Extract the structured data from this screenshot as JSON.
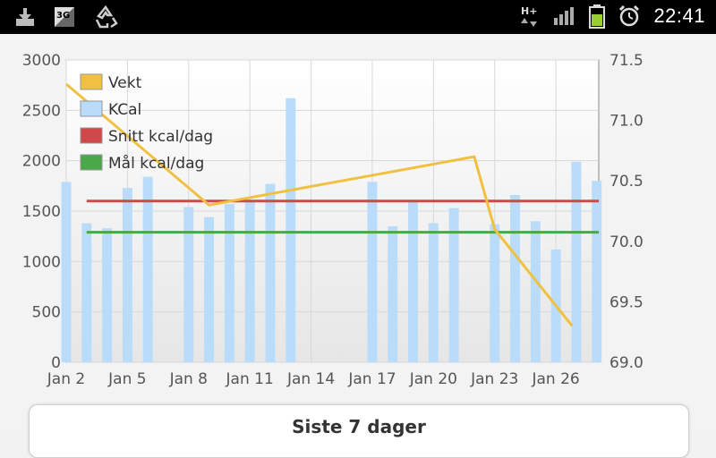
{
  "status_bar": {
    "time": "22:41",
    "network_type": "3G",
    "data_type": "H+",
    "icons": [
      "download-icon",
      "sim-3g-icon",
      "recycle-icon",
      "hplus-data-icon",
      "signal-icon",
      "battery-icon",
      "alarm-icon"
    ],
    "battery_color": "#9acd32"
  },
  "summary": {
    "title": "Siste 7 dager"
  },
  "colors": {
    "vekt": "#f0c040",
    "kcal": "#b8dcfa",
    "snitt": "#d04848",
    "maal": "#4aa84a",
    "grid": "#d8d8d8",
    "axis": "#555555"
  },
  "chart_data": {
    "type": "bar",
    "title": "",
    "x_tick_labels": [
      "Jan 2",
      "Jan 5",
      "Jan 8",
      "Jan 11",
      "Jan 14",
      "Jan 17",
      "Jan 20",
      "Jan 23",
      "Jan 26"
    ],
    "x_tick_days": [
      2,
      5,
      8,
      11,
      14,
      17,
      20,
      23,
      26
    ],
    "xlim": [
      2,
      28.1
    ],
    "ylim_left": [
      0,
      3000
    ],
    "y_ticks_left": [
      "0",
      "500",
      "1000",
      "1500",
      "2000",
      "2500",
      "3000"
    ],
    "ylim_right": [
      69.0,
      71.5
    ],
    "y_ticks_right": [
      "69.0",
      "69.5",
      "70.0",
      "70.5",
      "71.0",
      "71.5"
    ],
    "grid": true,
    "legend_position": "top-left",
    "series": [
      {
        "name": "Vekt",
        "kind": "line",
        "axis": "right",
        "points": [
          [
            2,
            71.3
          ],
          [
            9,
            70.3
          ],
          [
            22,
            70.7
          ],
          [
            23,
            70.1
          ],
          [
            26.8,
            69.3
          ]
        ]
      },
      {
        "name": "KCal",
        "kind": "bar",
        "axis": "left",
        "points": [
          [
            2,
            1790
          ],
          [
            3,
            1380
          ],
          [
            4,
            1330
          ],
          [
            5,
            1730
          ],
          [
            6,
            1840
          ],
          [
            8,
            1540
          ],
          [
            9,
            1440
          ],
          [
            10,
            1570
          ],
          [
            11,
            1600
          ],
          [
            12,
            1770
          ],
          [
            13,
            2620
          ],
          [
            17,
            1790
          ],
          [
            18,
            1350
          ],
          [
            19,
            1600
          ],
          [
            20,
            1380
          ],
          [
            21,
            1530
          ],
          [
            23,
            1370
          ],
          [
            24,
            1660
          ],
          [
            25,
            1400
          ],
          [
            26,
            1120
          ],
          [
            27,
            1990
          ],
          [
            28,
            1800
          ]
        ]
      },
      {
        "name": "Snitt kcal/dag",
        "kind": "hline",
        "axis": "left",
        "value": 1600,
        "range": [
          3,
          28.1
        ]
      },
      {
        "name": "Mål kcal/dag",
        "kind": "hline",
        "axis": "left",
        "value": 1290,
        "range": [
          3,
          28.1
        ]
      }
    ]
  }
}
